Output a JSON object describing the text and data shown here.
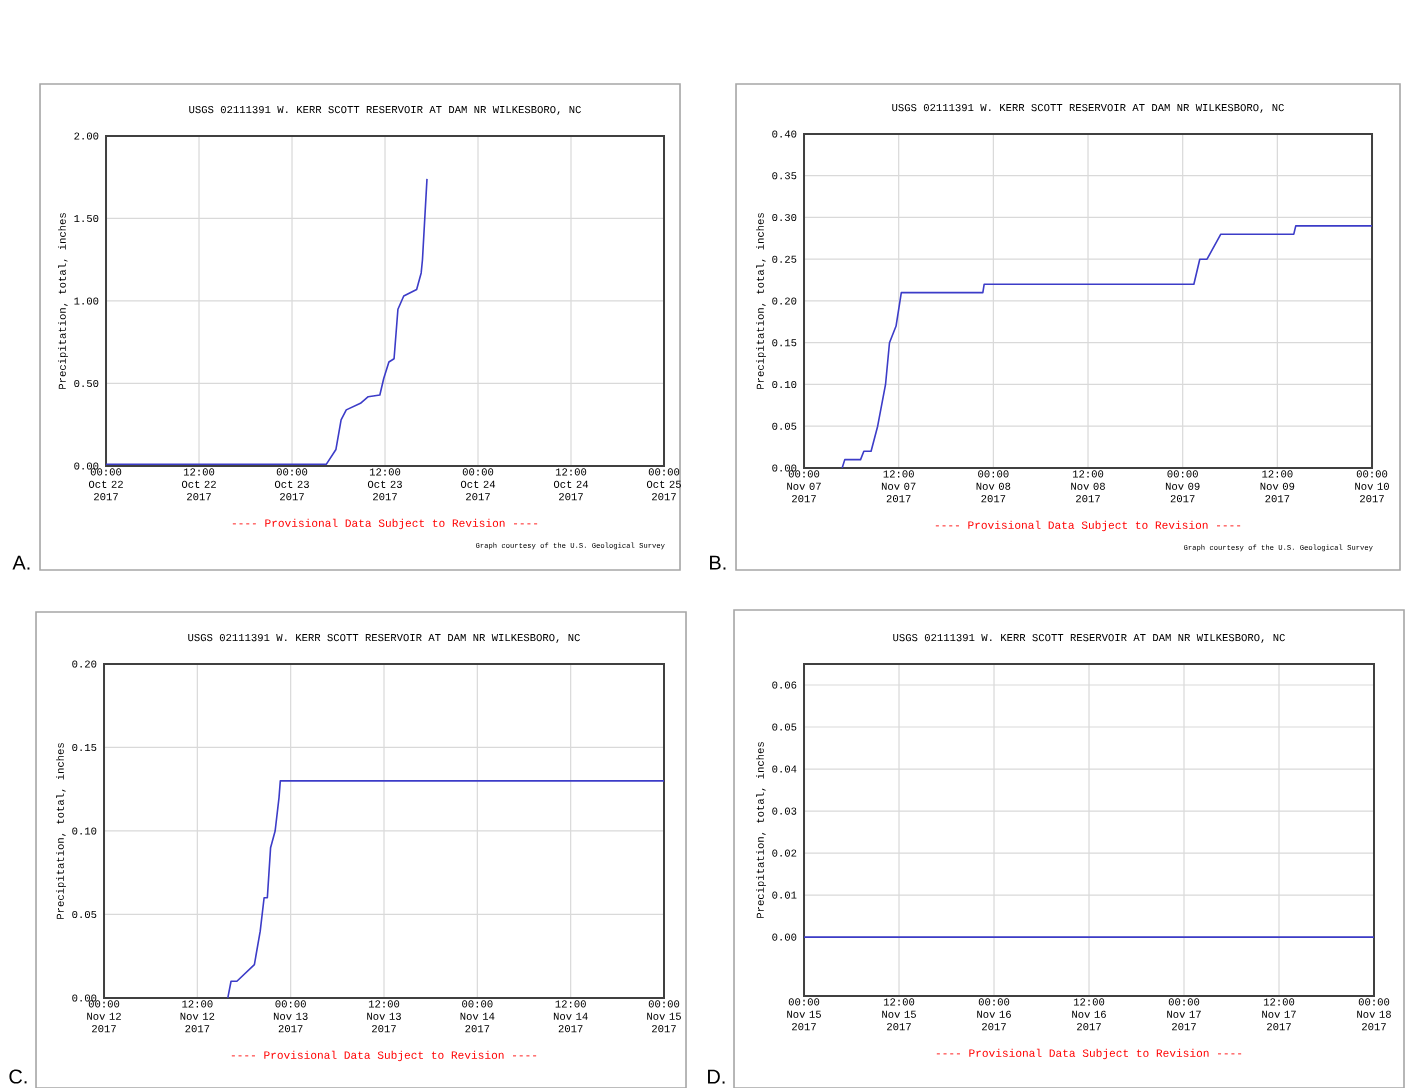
{
  "chart_data": [
    {
      "type": "line",
      "title": "USGS 02111391 W. KERR SCOTT RESERVOIR AT DAM NR WILKESBORO, NC",
      "ylabel": "Precipitation, total, inches",
      "grid": true,
      "legend": false,
      "marker": "none",
      "line_style": "solid",
      "xlim": [
        "2017-10-22T00:00",
        "2017-10-25T00:00"
      ],
      "xticks": [
        {
          "value": "2017-10-22T00:00",
          "label": "00:00 Oct 22 2017"
        },
        {
          "value": "2017-10-22T12:00",
          "label": "12:00 Oct 22 2017"
        },
        {
          "value": "2017-10-23T00:00",
          "label": "00:00 Oct 23 2017"
        },
        {
          "value": "2017-10-23T12:00",
          "label": "12:00 Oct 23 2017"
        },
        {
          "value": "2017-10-24T00:00",
          "label": "00:00 Oct 24 2017"
        },
        {
          "value": "2017-10-24T12:00",
          "label": "12:00 Oct 24 2017"
        },
        {
          "value": "2017-10-25T00:00",
          "label": "00:00 Oct 25 2017"
        }
      ],
      "ylim": [
        0,
        2
      ],
      "yticks": [
        {
          "value": 0,
          "label": "0.00"
        },
        {
          "value": 0.5,
          "label": "0.50"
        },
        {
          "value": 1,
          "label": "1.00"
        },
        {
          "value": 1.5,
          "label": "1.50"
        },
        {
          "value": 2,
          "label": "2.00"
        }
      ],
      "series": [
        {
          "color": "#3c3cc8",
          "x": [
            "2017-10-22T00:00",
            "2017-10-23T03:10",
            "2017-10-23T04:25",
            "2017-10-23T05:40",
            "2017-10-23T06:20",
            "2017-10-23T07:00",
            "2017-10-23T08:50",
            "2017-10-23T09:50",
            "2017-10-23T11:20",
            "2017-10-23T11:50",
            "2017-10-23T12:30",
            "2017-10-23T13:10",
            "2017-10-23T13:40",
            "2017-10-23T14:25",
            "2017-10-23T16:05",
            "2017-10-23T16:40",
            "2017-10-23T16:50",
            "2017-10-23T17:25"
          ],
          "values": [
            0.01,
            0.01,
            0.01,
            0.1,
            0.28,
            0.34,
            0.38,
            0.42,
            0.43,
            0.53,
            0.63,
            0.65,
            0.95,
            1.03,
            1.07,
            1.17,
            1.25,
            1.74
          ]
        }
      ],
      "annotations": [
        "---- Provisional Data Subject to Revision ----",
        "Graph courtesy of the U.S. Geological Survey",
        "A."
      ]
    },
    {
      "type": "line",
      "title": "USGS 02111391 W. KERR SCOTT RESERVOIR AT DAM NR WILKESBORO, NC",
      "ylabel": "Precipitation, total, inches",
      "grid": true,
      "legend": false,
      "marker": "none",
      "line_style": "solid",
      "xlim": [
        "2017-11-07T00:00",
        "2017-11-10T00:00"
      ],
      "xticks": [
        {
          "value": "2017-11-07T00:00",
          "label": "00:00 Nov 07 2017"
        },
        {
          "value": "2017-11-07T12:00",
          "label": "12:00 Nov 07 2017"
        },
        {
          "value": "2017-11-08T00:00",
          "label": "00:00 Nov 08 2017"
        },
        {
          "value": "2017-11-08T12:00",
          "label": "12:00 Nov 08 2017"
        },
        {
          "value": "2017-11-09T00:00",
          "label": "00:00 Nov 09 2017"
        },
        {
          "value": "2017-11-09T12:00",
          "label": "12:00 Nov 09 2017"
        },
        {
          "value": "2017-11-10T00:00",
          "label": "00:00 Nov 10 2017"
        }
      ],
      "ylim": [
        0,
        0.4
      ],
      "yticks": [
        {
          "value": 0,
          "label": "0.00"
        },
        {
          "value": 0.05,
          "label": "0.05"
        },
        {
          "value": 0.1,
          "label": "0.10"
        },
        {
          "value": 0.15,
          "label": "0.15"
        },
        {
          "value": 0.2,
          "label": "0.20"
        },
        {
          "value": 0.25,
          "label": "0.25"
        },
        {
          "value": 0.3,
          "label": "0.30"
        },
        {
          "value": 0.35,
          "label": "0.35"
        },
        {
          "value": 0.4,
          "label": "0.40"
        }
      ],
      "series": [
        {
          "color": "#3c3cc8",
          "x": [
            "2017-11-07T04:50",
            "2017-11-07T05:10",
            "2017-11-07T07:10",
            "2017-11-07T07:35",
            "2017-11-07T08:30",
            "2017-11-07T09:20",
            "2017-11-07T10:20",
            "2017-11-07T10:50",
            "2017-11-07T11:40",
            "2017-11-07T12:20",
            "2017-11-07T12:40",
            "2017-11-07T22:40",
            "2017-11-07T22:50",
            "2017-11-09T01:25",
            "2017-11-09T02:10",
            "2017-11-09T03:05",
            "2017-11-09T04:50",
            "2017-11-09T14:05",
            "2017-11-09T14:20",
            "2017-11-10T00:00"
          ],
          "values": [
            0.0,
            0.01,
            0.01,
            0.02,
            0.02,
            0.05,
            0.1,
            0.15,
            0.17,
            0.21,
            0.21,
            0.21,
            0.22,
            0.22,
            0.25,
            0.25,
            0.28,
            0.28,
            0.29,
            0.29
          ]
        }
      ],
      "annotations": [
        "---- Provisional Data Subject to Revision ----",
        "Graph courtesy of the U.S. Geological Survey",
        "B."
      ]
    },
    {
      "type": "line",
      "title": "USGS 02111391 W. KERR SCOTT RESERVOIR AT DAM NR WILKESBORO, NC",
      "ylabel": "Precipitation, total, inches",
      "grid": true,
      "legend": false,
      "marker": "none",
      "line_style": "solid",
      "xlim": [
        "2017-11-12T00:00",
        "2017-11-15T00:00"
      ],
      "xticks": [
        {
          "value": "2017-11-12T00:00",
          "label": "00:00 Nov 12 2017"
        },
        {
          "value": "2017-11-12T12:00",
          "label": "12:00 Nov 12 2017"
        },
        {
          "value": "2017-11-13T00:00",
          "label": "00:00 Nov 13 2017"
        },
        {
          "value": "2017-11-13T12:00",
          "label": "12:00 Nov 13 2017"
        },
        {
          "value": "2017-11-14T00:00",
          "label": "00:00 Nov 14 2017"
        },
        {
          "value": "2017-11-14T12:00",
          "label": "12:00 Nov 14 2017"
        },
        {
          "value": "2017-11-15T00:00",
          "label": "00:00 Nov 15 2017"
        }
      ],
      "ylim": [
        0,
        0.2
      ],
      "yticks": [
        {
          "value": 0,
          "label": "0.00"
        },
        {
          "value": 0.05,
          "label": "0.05"
        },
        {
          "value": 0.1,
          "label": "0.10"
        },
        {
          "value": 0.15,
          "label": "0.15"
        },
        {
          "value": 0.2,
          "label": "0.20"
        }
      ],
      "series": [
        {
          "color": "#3c3cc8",
          "x": [
            "2017-11-12T15:55",
            "2017-11-12T16:20",
            "2017-11-12T17:05",
            "2017-11-12T19:20",
            "2017-11-12T20:05",
            "2017-11-12T20:35",
            "2017-11-12T21:00",
            "2017-11-12T21:25",
            "2017-11-12T22:00",
            "2017-11-12T22:30",
            "2017-11-12T22:40",
            "2017-11-15T00:00"
          ],
          "values": [
            0.0,
            0.01,
            0.01,
            0.02,
            0.04,
            0.06,
            0.06,
            0.09,
            0.1,
            0.12,
            0.13,
            0.13
          ]
        }
      ],
      "annotations": [
        "---- Provisional Data Subject to Revision ----",
        "C."
      ]
    },
    {
      "type": "line",
      "title": "USGS 02111391 W. KERR SCOTT RESERVOIR AT DAM NR WILKESBORO, NC",
      "ylabel": "Precipitation, total, inches",
      "grid": true,
      "legend": false,
      "marker": "none",
      "line_style": "solid",
      "xlim": [
        "2017-11-15T00:00",
        "2017-11-18T00:00"
      ],
      "xticks": [
        {
          "value": "2017-11-15T00:00",
          "label": "00:00 Nov 15 2017"
        },
        {
          "value": "2017-11-15T12:00",
          "label": "12:00 Nov 15 2017"
        },
        {
          "value": "2017-11-16T00:00",
          "label": "00:00 Nov 16 2017"
        },
        {
          "value": "2017-11-16T12:00",
          "label": "12:00 Nov 16 2017"
        },
        {
          "value": "2017-11-17T00:00",
          "label": "00:00 Nov 17 2017"
        },
        {
          "value": "2017-11-17T12:00",
          "label": "12:00 Nov 17 2017"
        },
        {
          "value": "2017-11-18T00:00",
          "label": "00:00 Nov 18 2017"
        }
      ],
      "ylim": [
        -0.014,
        0.065
      ],
      "yticks": [
        {
          "value": 0,
          "label": "0.00"
        },
        {
          "value": 0.01,
          "label": "0.01"
        },
        {
          "value": 0.02,
          "label": "0.02"
        },
        {
          "value": 0.03,
          "label": "0.03"
        },
        {
          "value": 0.04,
          "label": "0.04"
        },
        {
          "value": 0.05,
          "label": "0.05"
        },
        {
          "value": 0.06,
          "label": "0.06"
        }
      ],
      "series": [
        {
          "color": "#3c3cc8",
          "x": [
            "2017-11-15T00:00",
            "2017-11-18T00:00"
          ],
          "values": [
            0.0,
            0.0
          ]
        }
      ],
      "annotations": [
        "---- Provisional Data Subject to Revision ----",
        "D."
      ]
    }
  ]
}
